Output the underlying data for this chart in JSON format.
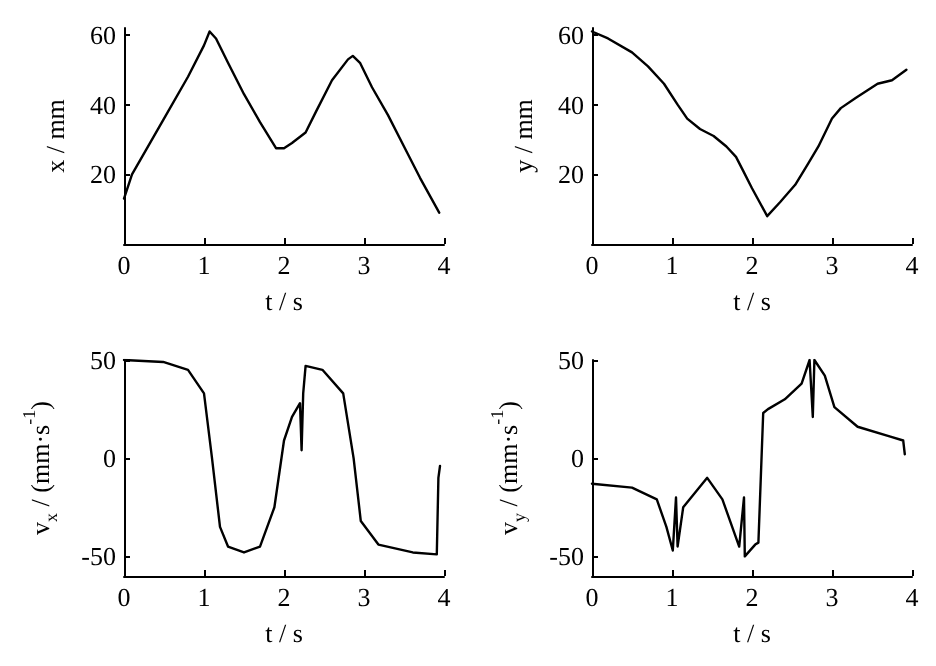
{
  "chart_data": [
    {
      "type": "line",
      "xlabel": "t / s",
      "ylabel": "x / mm",
      "xlim": [
        0,
        4
      ],
      "xticks": [
        0,
        1,
        2,
        3,
        4
      ],
      "ylim": [
        0,
        62
      ],
      "yticks": [
        20,
        40,
        60
      ],
      "grid": false,
      "marker": "none",
      "line_style": "solid",
      "series": [
        {
          "color": "#000000",
          "x": [
            0,
            0.1,
            0.5,
            0.8,
            1.0,
            1.07,
            1.15,
            1.3,
            1.5,
            1.7,
            1.9,
            2.0,
            2.1,
            2.27,
            2.4,
            2.6,
            2.8,
            2.86,
            2.95,
            3.1,
            3.3,
            3.5,
            3.7,
            3.94
          ],
          "values": [
            13,
            20,
            36,
            48,
            57,
            61,
            59,
            52,
            43,
            35,
            27.5,
            27.5,
            29,
            32,
            38,
            47,
            53,
            54,
            52,
            45,
            37,
            28,
            19,
            9
          ]
        }
      ]
    },
    {
      "type": "line",
      "xlabel": "t / s",
      "ylabel": "y / mm",
      "xlim": [
        0,
        4
      ],
      "xticks": [
        0,
        1,
        2,
        3,
        4
      ],
      "ylim": [
        0,
        62
      ],
      "yticks": [
        20,
        40,
        60
      ],
      "grid": false,
      "marker": "none",
      "line_style": "solid",
      "series": [
        {
          "color": "#000000",
          "x": [
            0,
            0.2,
            0.5,
            0.7,
            0.9,
            1.07,
            1.19,
            1.35,
            1.52,
            1.68,
            1.8,
            1.89,
            2.0,
            2.19,
            2.35,
            2.54,
            2.7,
            2.83,
            3.0,
            3.11,
            3.3,
            3.57,
            3.75,
            3.93
          ],
          "values": [
            61,
            59,
            55,
            51,
            46,
            40,
            36,
            33,
            31,
            28,
            25,
            21,
            16,
            8,
            12,
            17,
            23,
            28,
            36,
            39,
            42,
            46,
            47,
            50
          ]
        }
      ]
    },
    {
      "type": "line",
      "xlabel": "t / s",
      "ylabel": "v$_{x}$ / (mm·s$^{-1}$)",
      "xlim": [
        0,
        4
      ],
      "xticks": [
        0,
        1,
        2,
        3,
        4
      ],
      "ylim": [
        -60,
        50
      ],
      "yticks": [
        -50,
        0,
        50
      ],
      "grid": false,
      "marker": "none",
      "line_style": "solid",
      "series": [
        {
          "color": "#000000",
          "x": [
            0,
            0.49,
            0.8,
            1.0,
            1.1,
            1.2,
            1.3,
            1.5,
            1.7,
            1.88,
            2.0,
            2.1,
            2.2,
            2.22,
            2.24,
            2.27,
            2.48,
            2.74,
            2.87,
            2.96,
            3.18,
            3.61,
            3.91,
            3.93,
            3.95
          ],
          "values": [
            50,
            49,
            45,
            33,
            0,
            -35,
            -45,
            -48,
            -45,
            -25,
            9,
            21,
            28,
            4,
            33,
            47,
            45,
            33,
            0,
            -32,
            -44,
            -48,
            -49,
            -10,
            -4
          ]
        }
      ]
    },
    {
      "type": "line",
      "xlabel": "t / s",
      "ylabel": "v$_{y}$ / (mm·s$^{-1}$)",
      "xlim": [
        0,
        4
      ],
      "xticks": [
        0,
        1,
        2,
        3,
        4
      ],
      "ylim": [
        -60,
        50
      ],
      "yticks": [
        -50,
        0,
        50
      ],
      "grid": false,
      "marker": "none",
      "line_style": "solid",
      "series": [
        {
          "color": "#000000",
          "x": [
            0,
            0.5,
            0.81,
            0.93,
            1.01,
            1.05,
            1.07,
            1.14,
            1.44,
            1.63,
            1.84,
            1.9,
            1.91,
            2.04,
            2.08,
            2.14,
            2.2,
            2.41,
            2.62,
            2.72,
            2.76,
            2.78,
            2.91,
            3.03,
            3.32,
            3.73,
            3.89,
            3.91
          ],
          "values": [
            -13,
            -15,
            -21,
            -35,
            -47,
            -20,
            -45,
            -25,
            -10,
            -21,
            -45,
            -20,
            -50,
            -44,
            -43,
            23,
            25,
            30,
            38,
            50,
            21,
            50,
            42,
            26,
            16,
            11,
            9,
            2
          ]
        }
      ]
    }
  ]
}
